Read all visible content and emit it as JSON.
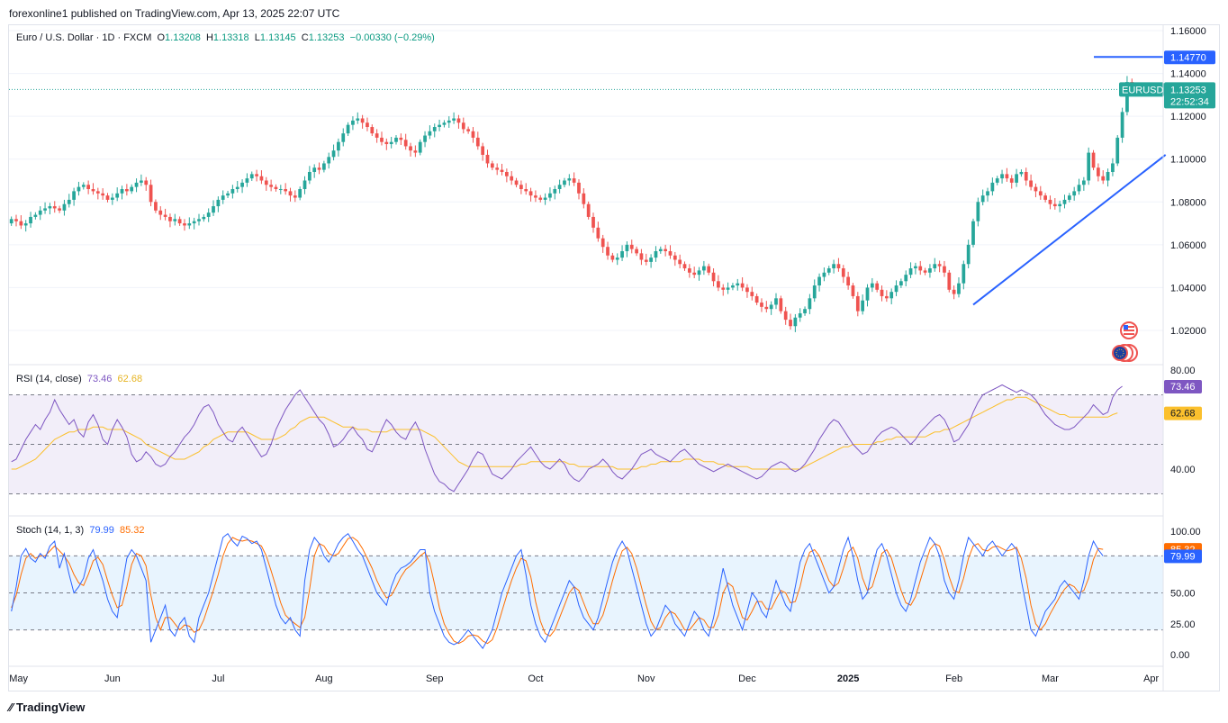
{
  "header": {
    "published_by": "forexonline1 published on TradingView.com, Apr 13, 2025 22:07 UTC"
  },
  "footer": {
    "brand": "TradingView"
  },
  "symbol": {
    "name": "Euro / U.S. Dollar · 1D · FXCM",
    "open_label": "O",
    "open": "1.13208",
    "high_label": "H",
    "high": "1.13318",
    "low_label": "L",
    "low": "1.13145",
    "close_label": "C",
    "close": "1.13253",
    "change": "−0.00330 (−0.29%)",
    "ticker_badge": "EURUSD",
    "countdown": "22:52:34"
  },
  "colors": {
    "up": "#26a69a",
    "down": "#ef5350",
    "trendline": "#2962ff",
    "rsi": "#7e57c2",
    "rsi_ma": "#fbc02d",
    "stoch_k": "#2962ff",
    "stoch_d": "#ff6d00"
  },
  "chart_data": [
    {
      "type": "candlestick",
      "title": "Euro / U.S. Dollar · 1D · FXCM",
      "x_labels": [
        "May",
        "Jun",
        "Jul",
        "Aug",
        "Sep",
        "Oct",
        "Nov",
        "Dec",
        "2025",
        "Feb",
        "Mar",
        "Apr"
      ],
      "y_ticks": [
        "1.16000",
        "1.14000",
        "1.12000",
        "1.10000",
        "1.08000",
        "1.06000",
        "1.04000",
        "1.02000"
      ],
      "ylim": [
        1.0,
        1.16
      ],
      "last_price": 1.13253,
      "horizontal_level": 1.1477,
      "horizontal_level_label": "1.14770",
      "last_price_label": "1.13253",
      "trendline": {
        "from": [
          "Feb 27 2025",
          1.032
        ],
        "to": [
          "Apr 14 2025",
          1.102
        ]
      },
      "closes": [
        1.072,
        1.071,
        1.069,
        1.07,
        1.073,
        1.074,
        1.076,
        1.077,
        1.078,
        1.077,
        1.076,
        1.079,
        1.081,
        1.085,
        1.087,
        1.088,
        1.086,
        1.085,
        1.084,
        1.083,
        1.081,
        1.082,
        1.084,
        1.086,
        1.085,
        1.087,
        1.089,
        1.09,
        1.088,
        1.08,
        1.076,
        1.074,
        1.073,
        1.071,
        1.072,
        1.07,
        1.069,
        1.07,
        1.071,
        1.072,
        1.073,
        1.075,
        1.078,
        1.081,
        1.083,
        1.084,
        1.086,
        1.087,
        1.089,
        1.091,
        1.093,
        1.092,
        1.09,
        1.088,
        1.087,
        1.086,
        1.086,
        1.085,
        1.083,
        1.082,
        1.086,
        1.09,
        1.094,
        1.096,
        1.095,
        1.098,
        1.101,
        1.104,
        1.108,
        1.112,
        1.116,
        1.118,
        1.119,
        1.117,
        1.115,
        1.112,
        1.11,
        1.108,
        1.107,
        1.108,
        1.11,
        1.109,
        1.106,
        1.104,
        1.103,
        1.108,
        1.111,
        1.113,
        1.115,
        1.116,
        1.117,
        1.118,
        1.119,
        1.117,
        1.114,
        1.113,
        1.11,
        1.106,
        1.102,
        1.098,
        1.096,
        1.095,
        1.094,
        1.092,
        1.09,
        1.088,
        1.086,
        1.085,
        1.083,
        1.082,
        1.081,
        1.082,
        1.084,
        1.086,
        1.088,
        1.09,
        1.091,
        1.089,
        1.084,
        1.079,
        1.073,
        1.068,
        1.063,
        1.059,
        1.055,
        1.053,
        1.054,
        1.057,
        1.06,
        1.058,
        1.056,
        1.053,
        1.052,
        1.054,
        1.057,
        1.058,
        1.057,
        1.055,
        1.053,
        1.051,
        1.049,
        1.047,
        1.046,
        1.048,
        1.05,
        1.047,
        1.043,
        1.04,
        1.039,
        1.04,
        1.041,
        1.042,
        1.04,
        1.038,
        1.036,
        1.033,
        1.031,
        1.03,
        1.032,
        1.035,
        1.029,
        1.025,
        1.022,
        1.026,
        1.028,
        1.03,
        1.035,
        1.041,
        1.045,
        1.047,
        1.049,
        1.051,
        1.049,
        1.045,
        1.041,
        1.036,
        1.029,
        1.034,
        1.04,
        1.042,
        1.039,
        1.036,
        1.035,
        1.038,
        1.041,
        1.043,
        1.046,
        1.049,
        1.05,
        1.048,
        1.047,
        1.049,
        1.051,
        1.05,
        1.047,
        1.039,
        1.037,
        1.042,
        1.051,
        1.06,
        1.071,
        1.08,
        1.083,
        1.085,
        1.089,
        1.091,
        1.093,
        1.091,
        1.089,
        1.093,
        1.094,
        1.09,
        1.087,
        1.085,
        1.083,
        1.081,
        1.079,
        1.078,
        1.079,
        1.081,
        1.083,
        1.085,
        1.088,
        1.09,
        1.103,
        1.096,
        1.092,
        1.09,
        1.094,
        1.098,
        1.11,
        1.122,
        1.136,
        1.13253
      ],
      "rsi": {
        "label": "RSI (14, close)",
        "value": "73.46",
        "ma_value": "62.68",
        "levels": [
          70,
          50,
          30
        ],
        "y_ticks": [
          "80.00",
          "40.00"
        ],
        "ylim": [
          25,
          80
        ],
        "values": [
          43,
          44,
          48,
          52,
          55,
          58,
          56,
          60,
          63,
          68,
          64,
          61,
          58,
          60,
          55,
          53,
          59,
          62,
          58,
          52,
          50,
          56,
          60,
          57,
          53,
          46,
          43,
          44,
          47,
          45,
          42,
          41,
          42,
          45,
          47,
          50,
          53,
          55,
          58,
          62,
          65,
          66,
          63,
          58,
          55,
          52,
          51,
          55,
          57,
          54,
          51,
          48,
          45,
          46,
          50,
          56,
          60,
          64,
          67,
          70,
          72,
          69,
          66,
          63,
          60,
          58,
          54,
          49,
          50,
          52,
          55,
          57,
          54,
          52,
          48,
          47,
          51,
          56,
          60,
          58,
          55,
          53,
          52,
          56,
          59,
          55,
          48,
          43,
          38,
          35,
          34,
          32,
          31,
          34,
          37,
          40,
          44,
          47,
          46,
          42,
          38,
          37,
          36,
          38,
          40,
          43,
          45,
          47,
          49,
          46,
          43,
          41,
          40,
          42,
          44,
          42,
          38,
          36,
          35,
          37,
          40,
          41,
          42,
          44,
          42,
          39,
          37,
          36,
          38,
          40,
          43,
          46,
          47,
          48,
          46,
          45,
          44,
          43,
          45,
          47,
          48,
          46,
          44,
          42,
          41,
          40,
          39,
          40,
          41,
          42,
          41,
          40,
          39,
          38,
          37,
          36,
          37,
          39,
          41,
          42,
          43,
          42,
          40,
          39,
          40,
          42,
          45,
          48,
          52,
          55,
          58,
          60,
          59,
          56,
          53,
          50,
          48,
          46,
          47,
          50,
          53,
          55,
          56,
          57,
          56,
          54,
          52,
          50,
          52,
          55,
          57,
          59,
          61,
          62,
          60,
          56,
          51,
          52,
          55,
          58,
          63,
          67,
          70,
          71,
          72,
          73,
          74,
          73,
          72,
          71,
          72,
          71,
          70,
          68,
          65,
          62,
          60,
          58,
          57,
          56,
          56,
          57,
          59,
          61,
          63,
          66,
          64,
          62,
          63,
          69,
          72,
          73.46
        ],
        "ma_values": [
          40,
          40,
          41,
          42,
          43,
          44,
          46,
          48,
          50,
          52,
          53,
          54,
          55,
          55,
          56,
          56,
          56,
          57,
          57,
          57,
          56,
          56,
          56,
          56,
          55,
          54,
          53,
          52,
          50,
          49,
          48,
          47,
          46,
          45,
          44,
          44,
          44,
          45,
          46,
          47,
          49,
          50,
          52,
          53,
          54,
          55,
          55,
          55,
          55,
          55,
          54,
          53,
          52,
          52,
          52,
          52,
          53,
          54,
          56,
          57,
          59,
          60,
          61,
          61,
          61,
          61,
          60,
          59,
          58,
          57,
          57,
          57,
          56,
          56,
          56,
          55,
          55,
          55,
          55,
          56,
          56,
          56,
          56,
          56,
          56,
          56,
          55,
          54,
          53,
          51,
          49,
          47,
          45,
          43,
          42,
          41,
          41,
          41,
          41,
          41,
          41,
          41,
          41,
          41,
          41,
          41,
          42,
          42,
          43,
          43,
          43,
          43,
          43,
          43,
          43,
          43,
          42,
          42,
          41,
          41,
          41,
          41,
          41,
          41,
          41,
          41,
          40,
          40,
          40,
          40,
          40,
          41,
          41,
          42,
          42,
          43,
          43,
          43,
          43,
          43,
          44,
          44,
          44,
          44,
          43,
          43,
          43,
          42,
          42,
          41,
          41,
          41,
          41,
          41,
          40,
          40,
          40,
          40,
          40,
          40,
          40,
          40,
          40,
          40,
          40,
          41,
          42,
          43,
          44,
          45,
          46,
          47,
          48,
          49,
          49,
          50,
          50,
          50,
          50,
          50,
          51,
          51,
          52,
          52,
          53,
          53,
          53,
          53,
          53,
          53,
          53,
          54,
          55,
          55,
          56,
          56,
          57,
          58,
          59,
          60,
          61,
          62,
          63,
          64,
          65,
          66,
          67,
          68,
          68,
          69,
          69,
          69,
          68,
          67,
          66,
          65,
          64,
          63,
          62,
          62,
          61,
          61,
          61,
          61,
          61,
          61,
          61,
          61,
          61,
          62,
          62.68
        ]
      },
      "stoch": {
        "label": "Stoch (14, 1, 3)",
        "k_value": "79.99",
        "d_value": "85.32",
        "levels": [
          80,
          50,
          20
        ],
        "y_ticks": [
          "100.00",
          "50.00",
          "25.00",
          "0.00"
        ],
        "ylim": [
          0,
          100
        ],
        "k_values": [
          35,
          55,
          80,
          86,
          78,
          75,
          82,
          78,
          88,
          92,
          70,
          82,
          65,
          50,
          55,
          62,
          78,
          85,
          72,
          60,
          45,
          35,
          30,
          55,
          78,
          85,
          80,
          70,
          60,
          10,
          20,
          30,
          40,
          20,
          15,
          25,
          30,
          15,
          10,
          30,
          40,
          50,
          65,
          80,
          95,
          98,
          92,
          88,
          96,
          94,
          90,
          92,
          85,
          70,
          55,
          40,
          30,
          25,
          30,
          20,
          15,
          60,
          85,
          95,
          90,
          80,
          75,
          82,
          90,
          95,
          98,
          92,
          85,
          80,
          70,
          60,
          50,
          45,
          40,
          55,
          65,
          70,
          72,
          75,
          80,
          85,
          85,
          50,
          35,
          25,
          15,
          10,
          8,
          10,
          15,
          20,
          15,
          10,
          5,
          12,
          20,
          35,
          50,
          60,
          70,
          80,
          85,
          65,
          40,
          25,
          15,
          10,
          20,
          30,
          40,
          50,
          60,
          55,
          40,
          30,
          25,
          20,
          30,
          45,
          60,
          75,
          85,
          92,
          85,
          70,
          55,
          40,
          25,
          15,
          20,
          30,
          40,
          35,
          25,
          20,
          15,
          25,
          35,
          30,
          20,
          15,
          30,
          50,
          70,
          55,
          40,
          30,
          20,
          35,
          50,
          45,
          35,
          30,
          45,
          60,
          50,
          40,
          35,
          55,
          75,
          85,
          90,
          80,
          70,
          60,
          50,
          55,
          70,
          85,
          95,
          80,
          60,
          45,
          50,
          70,
          85,
          90,
          80,
          65,
          50,
          40,
          35,
          45,
          60,
          75,
          85,
          95,
          90,
          80,
          60,
          50,
          45,
          60,
          80,
          95,
          90,
          85,
          80,
          88,
          92,
          86,
          80,
          85,
          90,
          85,
          60,
          40,
          20,
          15,
          25,
          35,
          40,
          45,
          55,
          60,
          55,
          50,
          45,
          60,
          80,
          92,
          85,
          79.99
        ],
        "d_values": [
          38,
          48,
          65,
          78,
          82,
          78,
          80,
          80,
          84,
          88,
          84,
          80,
          74,
          65,
          58,
          56,
          65,
          76,
          79,
          73,
          60,
          48,
          38,
          40,
          55,
          73,
          82,
          80,
          72,
          48,
          30,
          20,
          30,
          30,
          25,
          20,
          24,
          23,
          18,
          20,
          28,
          40,
          52,
          65,
          80,
          90,
          95,
          93,
          92,
          93,
          92,
          90,
          88,
          80,
          68,
          55,
          42,
          32,
          28,
          25,
          22,
          30,
          53,
          80,
          90,
          88,
          82,
          80,
          82,
          88,
          94,
          95,
          92,
          86,
          78,
          70,
          60,
          52,
          46,
          48,
          55,
          63,
          69,
          72,
          76,
          80,
          83,
          74,
          57,
          38,
          25,
          17,
          11,
          9,
          11,
          15,
          16,
          15,
          11,
          9,
          12,
          22,
          35,
          48,
          60,
          70,
          78,
          76,
          63,
          43,
          27,
          17,
          15,
          20,
          30,
          40,
          50,
          55,
          52,
          42,
          32,
          25,
          25,
          32,
          45,
          60,
          73,
          84,
          87,
          82,
          70,
          55,
          40,
          27,
          20,
          22,
          30,
          35,
          33,
          27,
          20,
          20,
          25,
          30,
          28,
          22,
          22,
          32,
          50,
          58,
          55,
          42,
          30,
          28,
          35,
          43,
          43,
          37,
          37,
          45,
          52,
          50,
          42,
          43,
          55,
          72,
          83,
          85,
          80,
          70,
          60,
          55,
          58,
          70,
          83,
          87,
          78,
          62,
          52,
          55,
          68,
          82,
          85,
          78,
          65,
          52,
          42,
          40,
          47,
          60,
          73,
          85,
          90,
          88,
          77,
          63,
          52,
          50,
          62,
          78,
          88,
          90,
          85,
          84,
          87,
          88,
          86,
          84,
          85,
          87,
          78,
          62,
          40,
          25,
          20,
          25,
          33,
          40,
          47,
          53,
          57,
          55,
          50,
          52,
          62,
          77,
          86,
          85.32
        ]
      }
    }
  ]
}
